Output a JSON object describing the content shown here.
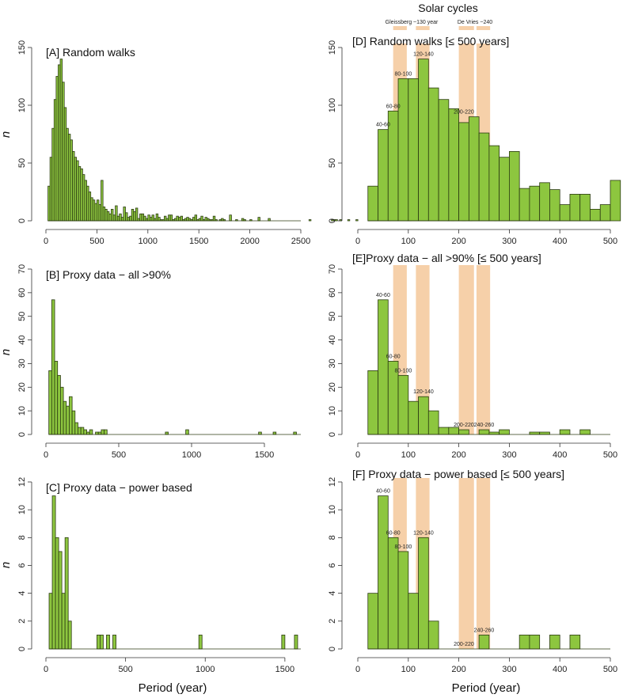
{
  "figure": {
    "solar_title": "Solar cycles",
    "x_axis_label": "Period (year)",
    "solar_labels": [
      "Gleissberg ~130 year",
      "De Vries ~240"
    ],
    "solar_bands": [
      [
        70,
        97
      ],
      [
        115,
        142
      ],
      [
        200,
        230
      ],
      [
        235,
        262
      ]
    ]
  },
  "chart_data": [
    {
      "id": "A",
      "type": "bar",
      "title": "[A] Random walks",
      "ylabel": "n",
      "xlim": [
        0,
        2500
      ],
      "ylim": [
        0,
        150
      ],
      "xticks": [
        0,
        500,
        1000,
        1500,
        2000,
        2500
      ],
      "yticks": [
        0,
        50,
        100,
        150
      ],
      "bin_width": 20,
      "bin_start": 20,
      "values": [
        30,
        55,
        80,
        105,
        125,
        135,
        140,
        120,
        98,
        80,
        75,
        70,
        60,
        55,
        52,
        47,
        45,
        40,
        35,
        30,
        25,
        20,
        18,
        15,
        18,
        14,
        35,
        12,
        10,
        8,
        6,
        10,
        5,
        13,
        4,
        6,
        3,
        12,
        7,
        3,
        4,
        10,
        8,
        11,
        2,
        6,
        6,
        4,
        2,
        5,
        3,
        5,
        2,
        6,
        3,
        1,
        1,
        4,
        2,
        5,
        5,
        1,
        2,
        4,
        3,
        4,
        1,
        2,
        3,
        2,
        1,
        3,
        5,
        1,
        2,
        4,
        1,
        3,
        2,
        1,
        1,
        4,
        1,
        0,
        1,
        2,
        1,
        0,
        0,
        5,
        0,
        0,
        1,
        0,
        0,
        2,
        1,
        0,
        0,
        1,
        0,
        0,
        0,
        3,
        0,
        0,
        0,
        0,
        2,
        0,
        0,
        0,
        0,
        0,
        0,
        0,
        0,
        0,
        0,
        0,
        0,
        0,
        0,
        0,
        0,
        0,
        0,
        0,
        1,
        0,
        0,
        0,
        0,
        0,
        0,
        0,
        0,
        0,
        0,
        1,
        1,
        1,
        0,
        1,
        0,
        0,
        0,
        1,
        0,
        0,
        0,
        1,
        0,
        0,
        0,
        0,
        0,
        1,
        0,
        0,
        0,
        0,
        0,
        0,
        0,
        0,
        0,
        1,
        0,
        0,
        0,
        0,
        0,
        0,
        0,
        0,
        1,
        1,
        0,
        0,
        0,
        0,
        0,
        0,
        0,
        0,
        0,
        0,
        0,
        0,
        0,
        0,
        0,
        0,
        0,
        0,
        1,
        0,
        1,
        0,
        0,
        0,
        0,
        1,
        1,
        0,
        0,
        1,
        0,
        0,
        0,
        0,
        0,
        0,
        0,
        0,
        0,
        0,
        0,
        1
      ],
      "annotations": []
    },
    {
      "id": "B",
      "type": "bar",
      "title": "[B] Proxy data − all >90%",
      "ylabel": "n",
      "xlim": [
        0,
        1750
      ],
      "ylim": [
        0,
        70
      ],
      "xticks": [
        0,
        500,
        1000,
        1500
      ],
      "yticks": [
        0,
        10,
        20,
        30,
        40,
        50,
        60,
        70
      ],
      "bin_width": 20,
      "bin_start": 20,
      "values": [
        27,
        57,
        31,
        25,
        20,
        14,
        12,
        16,
        10,
        5,
        3,
        3,
        2,
        1,
        2,
        0,
        1,
        1,
        2,
        2,
        0,
        0,
        0,
        0,
        0,
        0,
        0,
        0,
        0,
        0,
        0,
        0,
        0,
        0,
        0,
        0,
        0,
        0,
        0,
        0,
        1,
        0,
        0,
        0,
        0,
        0,
        0,
        2,
        0,
        0,
        0,
        0,
        0,
        0,
        0,
        0,
        0,
        0,
        0,
        0,
        0,
        0,
        0,
        0,
        0,
        0,
        0,
        0,
        0,
        0,
        0,
        0,
        1,
        0,
        0,
        0,
        0,
        1,
        0,
        0,
        0,
        0,
        0,
        0,
        1
      ],
      "annotations": []
    },
    {
      "id": "C",
      "type": "bar",
      "title": "[C] Proxy data − power based",
      "ylabel": "n",
      "xlim": [
        0,
        1600
      ],
      "ylim": [
        0,
        12
      ],
      "xticks": [
        0,
        500,
        1000,
        1500
      ],
      "yticks": [
        0,
        2,
        4,
        6,
        8,
        10,
        12
      ],
      "bin_width": 20,
      "bin_start": 20,
      "values": [
        4,
        11,
        8,
        7,
        4,
        8,
        2,
        0,
        0,
        0,
        0,
        0,
        0,
        0,
        0,
        1,
        1,
        0,
        1,
        0,
        1,
        0,
        0,
        0,
        0,
        0,
        0,
        0,
        0,
        0,
        0,
        0,
        0,
        0,
        0,
        0,
        0,
        0,
        0,
        0,
        0,
        0,
        0,
        0,
        0,
        0,
        0,
        1,
        0,
        0,
        0,
        0,
        0,
        0,
        0,
        0,
        0,
        0,
        0,
        0,
        0,
        0,
        0,
        0,
        0,
        0,
        0,
        0,
        0,
        0,
        0,
        0,
        0,
        1,
        0,
        0,
        0,
        1
      ],
      "annotations": []
    },
    {
      "id": "D",
      "type": "bar",
      "title": "[D] Random walks [≤ 500 years]",
      "ylabel": "",
      "xlim": [
        0,
        500
      ],
      "ylim": [
        0,
        150
      ],
      "xticks": [
        0,
        100,
        200,
        300,
        400,
        500
      ],
      "yticks": [
        0,
        50,
        100,
        150
      ],
      "bin_width": 20,
      "bin_start": 20,
      "values": [
        30,
        79,
        95,
        123,
        123,
        140,
        115,
        105,
        97,
        85,
        90,
        76,
        65,
        55,
        60,
        28,
        30,
        33,
        27,
        14,
        23,
        23,
        10,
        14,
        35
      ],
      "annotations": [
        {
          "x": 50,
          "y": 79,
          "text": "40-60"
        },
        {
          "x": 70,
          "y": 95,
          "text": "60-80"
        },
        {
          "x": 90,
          "y": 123,
          "text": "80-100"
        },
        {
          "x": 130,
          "y": 140,
          "text": "120-140"
        },
        {
          "x": 210,
          "y": 90,
          "text": "200-220"
        }
      ]
    },
    {
      "id": "E",
      "type": "bar",
      "title": "[E]Proxy data − all >90% [≤ 500 years]",
      "ylabel": "",
      "xlim": [
        0,
        500
      ],
      "ylim": [
        0,
        70
      ],
      "xticks": [
        0,
        100,
        200,
        300,
        400,
        500
      ],
      "yticks": [
        0,
        10,
        20,
        30,
        40,
        50,
        60,
        70
      ],
      "bin_width": 20,
      "bin_start": 20,
      "values": [
        27,
        57,
        31,
        25,
        14,
        16,
        10,
        3,
        3,
        2,
        0,
        2,
        1,
        2,
        0,
        0,
        1,
        1,
        0,
        2,
        0,
        2
      ],
      "annotations": [
        {
          "x": 50,
          "y": 57,
          "text": "40-60"
        },
        {
          "x": 70,
          "y": 31,
          "text": "60-80"
        },
        {
          "x": 90,
          "y": 25,
          "text": "80-100"
        },
        {
          "x": 130,
          "y": 16,
          "text": "120-140"
        },
        {
          "x": 210,
          "y": 2,
          "text": "200-220"
        },
        {
          "x": 250,
          "y": 2,
          "text": "240-260"
        }
      ]
    },
    {
      "id": "F",
      "type": "bar",
      "title": "[F] Proxy data − power based [≤ 500 years]",
      "ylabel": "",
      "xlim": [
        0,
        500
      ],
      "ylim": [
        0,
        12
      ],
      "xticks": [
        0,
        100,
        200,
        300,
        400,
        500
      ],
      "yticks": [
        0,
        2,
        4,
        6,
        8,
        10,
        12
      ],
      "bin_width": 20,
      "bin_start": 20,
      "values": [
        4,
        11,
        8,
        7,
        4,
        8,
        2,
        0,
        0,
        0,
        0,
        1,
        0,
        0,
        0,
        1,
        1,
        0,
        1,
        0,
        1
      ],
      "annotations": [
        {
          "x": 50,
          "y": 11,
          "text": "40-60"
        },
        {
          "x": 70,
          "y": 8,
          "text": "60-80"
        },
        {
          "x": 90,
          "y": 7,
          "text": "80-100"
        },
        {
          "x": 130,
          "y": 8,
          "text": "120-140"
        },
        {
          "x": 210,
          "y": 0,
          "text": "200-220"
        },
        {
          "x": 250,
          "y": 1,
          "text": "240-260"
        }
      ]
    }
  ]
}
